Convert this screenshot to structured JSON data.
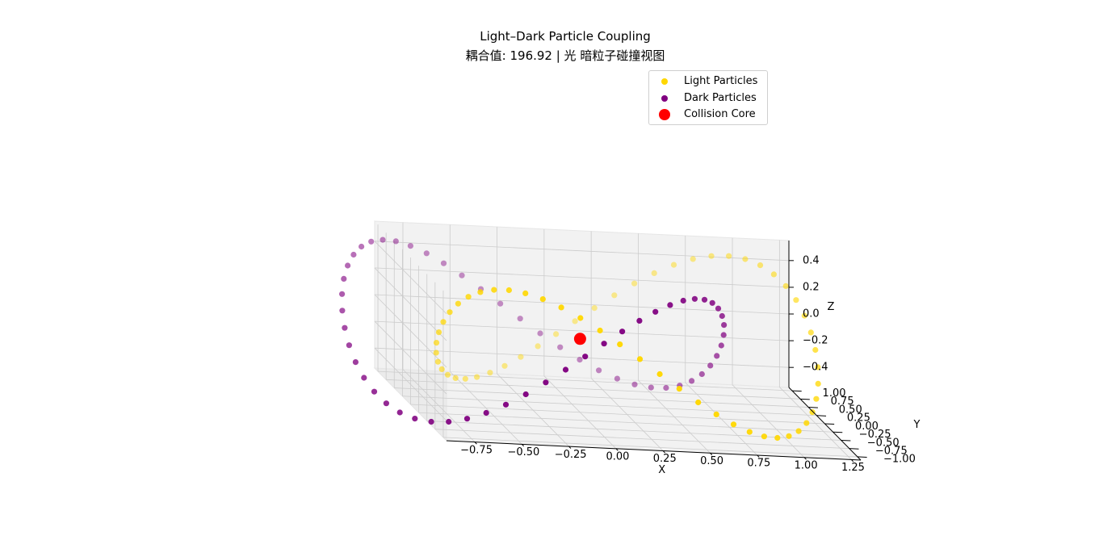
{
  "chart_data": {
    "type": "scatter",
    "projection": "3d",
    "title": "Light–Dark Particle Coupling",
    "subtitle": "耦合值: 196.92 | 光 暗粒子碰撞视图",
    "xlabel": "X",
    "ylabel": "Y",
    "zlabel": "Z",
    "xlim": [
      -0.9,
      1.3
    ],
    "ylim": [
      -1.1,
      1.1
    ],
    "zlim": [
      -0.55,
      0.55
    ],
    "x_ticks": [
      "−0.75",
      "−0.50",
      "−0.25",
      "0.00",
      "0.25",
      "0.50",
      "0.75",
      "1.00",
      "1.25"
    ],
    "y_ticks": [
      "−1.00",
      "−0.75",
      "−0.50",
      "−0.25",
      "0.00",
      "0.25",
      "0.50",
      "0.75",
      "1.00"
    ],
    "z_ticks": [
      "−0.4",
      "−0.2",
      "0.0",
      "0.2",
      "0.4"
    ],
    "x_tick_values": [
      -0.75,
      -0.5,
      -0.25,
      0,
      0.25,
      0.5,
      0.75,
      1.0,
      1.25
    ],
    "y_tick_values": [
      -1.0,
      -0.75,
      -0.5,
      -0.25,
      0,
      0.25,
      0.5,
      0.75,
      1.0
    ],
    "z_tick_values": [
      -0.4,
      -0.2,
      0,
      0.2,
      0.4
    ],
    "grid": true,
    "legend_position": "top-right",
    "series": [
      {
        "name": "Light Particles",
        "color": "#ffd700",
        "curve": {
          "x": "0.25 + cos(t)",
          "y": "sin(t)",
          "z": "0.5 * sin(2t)"
        },
        "n_points": 60
      },
      {
        "name": "Dark Particles",
        "color": "#800080",
        "curve": {
          "x": "-0.25 + cos(t)",
          "y": "sin(t)",
          "z": "-0.5 * sin(2t)"
        },
        "n_points": 60
      },
      {
        "name": "Collision Core",
        "color": "#ff0000",
        "points": [
          [
            0,
            0,
            0
          ]
        ]
      }
    ]
  }
}
